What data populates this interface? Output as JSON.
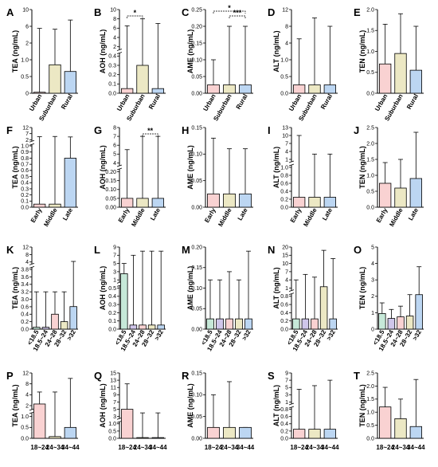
{
  "colors": {
    "pink": "#f9d2d2",
    "yellow": "#ece8c4",
    "blue": "#bcd6f2",
    "green": "#c6e8d8",
    "purple": "#cfc6ea",
    "orange": "#f7dcc0",
    "axis": "#000000"
  },
  "chart_data": [
    {
      "id": "A",
      "type": "bar",
      "ylabel": "TEA (ng/mL)",
      "categories": [
        "Urban",
        "Suburban",
        "Rural"
      ],
      "values": [
        0.03,
        0.85,
        0.65
      ],
      "errors": [
        5.5,
        5.3,
        7.5
      ],
      "yticks": [
        "0",
        "0.5",
        "1.0",
        "2",
        "6",
        "10"
      ],
      "colors": [
        "pink",
        "yellow",
        "blue"
      ],
      "rotated": true,
      "sig": []
    },
    {
      "id": "B",
      "type": "bar",
      "ylabel": "AOH (ng/mL)",
      "categories": [
        "Urban",
        "Suburban",
        "Rural"
      ],
      "values": [
        0.05,
        0.3,
        0.05
      ],
      "errors": [
        6.5,
        8,
        7
      ],
      "yticks": [
        "0.0",
        "0.1",
        "0.2",
        "0.3",
        "0.4",
        "2",
        "4",
        "6",
        "8",
        "10"
      ],
      "colors": [
        "pink",
        "yellow",
        "blue"
      ],
      "rotated": true,
      "sig": [
        {
          "label": "*",
          "from": 0,
          "to": 1,
          "level": 1
        }
      ]
    },
    {
      "id": "C",
      "type": "bar",
      "ylabel": "AME (ng/mL)",
      "categories": [
        "Urban",
        "Suburban",
        "Rural"
      ],
      "values": [
        0.025,
        0.025,
        0.025
      ],
      "errors": [
        0.1,
        0.2,
        0.2
      ],
      "yticks": [
        "0.00",
        "0.05",
        "0.10",
        "0.15",
        "0.20",
        "0.25"
      ],
      "colors": [
        "pink",
        "yellow",
        "blue"
      ],
      "rotated": true,
      "sig": [
        {
          "label": "*",
          "from": 0,
          "to": 2,
          "level": 2
        },
        {
          "label": "***",
          "from": 1,
          "to": 2,
          "level": 1
        }
      ]
    },
    {
      "id": "D",
      "type": "bar",
      "ylabel": "ALT (ng/mL)",
      "categories": [
        "Urban",
        "Suburban",
        "Rural"
      ],
      "values": [
        0.25,
        0.25,
        0.25
      ],
      "errors": [
        5,
        10,
        8
      ],
      "yticks": [
        "0.0",
        "0.5",
        "1.0",
        "4",
        "8",
        "12"
      ],
      "colors": [
        "pink",
        "yellow",
        "blue"
      ],
      "rotated": true,
      "sig": []
    },
    {
      "id": "E",
      "type": "bar",
      "ylabel": "TEN (ng/mL)",
      "categories": [
        "Urban",
        "Suburban",
        "Rural"
      ],
      "values": [
        0.7,
        0.95,
        0.55
      ],
      "errors": [
        1.65,
        1.9,
        1.6
      ],
      "yticks": [
        "0.0",
        "0.5",
        "1.0",
        "1.5",
        "2.0"
      ],
      "colors": [
        "pink",
        "yellow",
        "blue"
      ],
      "rotated": true,
      "sig": []
    },
    {
      "id": "F",
      "type": "bar",
      "ylabel": "TEA (ng/mL)",
      "categories": [
        "Early",
        "Middle",
        "Late"
      ],
      "values": [
        0.05,
        0.05,
        0.8
      ],
      "errors": [
        4.5,
        4.7,
        4.3
      ],
      "yticks": [
        "0.0",
        "0.1",
        "0.2",
        "0.3",
        "0.4",
        "0.5",
        "0.6",
        "0.7",
        "0.8",
        "0.9",
        "1.0",
        "2",
        "7",
        "12"
      ],
      "colors": [
        "pink",
        "yellow",
        "blue"
      ],
      "rotated": true,
      "sig": []
    },
    {
      "id": "G",
      "type": "bar",
      "ylabel": "AOH (ng/mL)",
      "categories": [
        "Early",
        "Middle",
        "Late"
      ],
      "values": [
        0.05,
        0.05,
        0.05
      ],
      "errors": [
        5.5,
        7,
        7
      ],
      "yticks": [
        "0.00",
        "0.05",
        "0.10",
        "0.15",
        "0.20",
        "4",
        "5",
        "6",
        "7",
        "8"
      ],
      "colors": [
        "pink",
        "yellow",
        "blue"
      ],
      "rotated": true,
      "sig": [
        {
          "label": "**",
          "from": 1,
          "to": 2,
          "level": 1
        }
      ]
    },
    {
      "id": "H",
      "type": "bar",
      "ylabel": "AME (ng/mL)",
      "categories": [
        "Early",
        "Middle",
        "Late"
      ],
      "values": [
        0.025,
        0.025,
        0.025
      ],
      "errors": [
        0.13,
        0.11,
        0.11
      ],
      "yticks": [
        "0.00",
        "0.05",
        "0.10",
        "0.15"
      ],
      "colors": [
        "pink",
        "yellow",
        "blue"
      ],
      "rotated": true,
      "sig": []
    },
    {
      "id": "I",
      "type": "bar",
      "ylabel": "ALT (ng/mL)",
      "categories": [
        "Early",
        "Middle",
        "Late"
      ],
      "values": [
        0.25,
        0.25,
        0.25
      ],
      "errors": [
        10,
        3,
        3
      ],
      "yticks": [
        "0.0",
        "0.2",
        "0.4",
        "0.6",
        "0.8",
        "1.0",
        "1",
        "4",
        "7",
        "10",
        "13"
      ],
      "colors": [
        "pink",
        "yellow",
        "blue"
      ],
      "rotated": true,
      "sig": []
    },
    {
      "id": "J",
      "type": "bar",
      "ylabel": "TEN (ng/mL)",
      "categories": [
        "Early",
        "Middle",
        "Late"
      ],
      "values": [
        0.75,
        0.6,
        0.9
      ],
      "errors": [
        1.4,
        1.5,
        2.35
      ],
      "yticks": [
        "0.0",
        "0.5",
        "1.0",
        "1.5",
        "2.0",
        "2.5"
      ],
      "colors": [
        "pink",
        "yellow",
        "blue"
      ],
      "rotated": true,
      "sig": []
    },
    {
      "id": "K",
      "type": "bar",
      "ylabel": "TEA (ng/mL)",
      "categories": [
        "<18.5",
        "18.5~24",
        "24~28",
        "28~32",
        ">32"
      ],
      "values": [
        0.05,
        0.05,
        0.4,
        0.2,
        0.65
      ],
      "errors": [
        3.2,
        3.2,
        3.2,
        3.2,
        4.3
      ],
      "yticks": [
        "0.0",
        "0.2",
        "0.4",
        "0.6",
        "3.0",
        "3.2",
        "3.4",
        "3.6",
        "3.8",
        "4",
        "8",
        "12"
      ],
      "colors": [
        "green",
        "purple",
        "pink",
        "yellow",
        "blue"
      ],
      "rotated": true,
      "sig": []
    },
    {
      "id": "L",
      "type": "bar",
      "ylabel": "AOH (ng/mL)",
      "categories": [
        "<18.5",
        "18.5~24",
        "24~28",
        "28~32",
        ">32"
      ],
      "values": [
        2.5,
        0.05,
        0.05,
        0.05,
        0.05
      ],
      "errors": [
        5,
        7,
        8,
        8,
        8
      ],
      "yticks": [
        "0.0",
        "0.1",
        "0.2",
        "0.3",
        "0.4",
        "0.5",
        "1",
        "3",
        "5",
        "7",
        "9"
      ],
      "colors": [
        "green",
        "purple",
        "pink",
        "yellow",
        "blue"
      ],
      "rotated": true,
      "sig": []
    },
    {
      "id": "M",
      "type": "bar",
      "ylabel": "AME (ng/mL)",
      "categories": [
        "<18.5",
        "18.5~24",
        "24~28",
        "28~32",
        ">32"
      ],
      "values": [
        0.025,
        0.025,
        0.025,
        0.025,
        0.025
      ],
      "errors": [
        0.12,
        0.12,
        0.14,
        0.12,
        0.19
      ],
      "yticks": [
        "0.00",
        "0.05",
        "0.10",
        "0.15",
        "0.20"
      ],
      "colors": [
        "green",
        "purple",
        "pink",
        "yellow",
        "blue"
      ],
      "rotated": true,
      "sig": []
    },
    {
      "id": "N",
      "type": "bar",
      "ylabel": "ALT (ng/mL)",
      "categories": [
        "<18.5",
        "18.5~24",
        "24~28",
        "28~32",
        ">32"
      ],
      "values": [
        0.25,
        0.25,
        0.25,
        1.5,
        0.25
      ],
      "errors": [
        4,
        6,
        5,
        18,
        13
      ],
      "yticks": [
        "0.0",
        "0.2",
        "0.4",
        "0.6",
        "0.8",
        "1",
        "4",
        "7",
        "10",
        "15",
        "20"
      ],
      "colors": [
        "green",
        "purple",
        "pink",
        "yellow",
        "blue"
      ],
      "rotated": true,
      "sig": []
    },
    {
      "id": "O",
      "type": "bar",
      "ylabel": "TEN (ng/mL)",
      "categories": [
        "<18.5",
        "18.5~24",
        "24~28",
        "28~32",
        ">32"
      ],
      "values": [
        0.95,
        0.65,
        0.75,
        0.8,
        2.1
      ],
      "errors": [
        1.6,
        1.2,
        1.4,
        2.1,
        3.8
      ],
      "yticks": [
        "0",
        "1",
        "2",
        "3",
        "4",
        "5"
      ],
      "colors": [
        "green",
        "purple",
        "pink",
        "yellow",
        "blue"
      ],
      "rotated": true,
      "sig": []
    },
    {
      "id": "P",
      "type": "bar",
      "ylabel": "TEA (ng/mL)",
      "categories": [
        "18~24",
        "24~34",
        "34~44"
      ],
      "values": [
        2.3,
        0.08,
        0.5
      ],
      "errors": [
        5,
        5,
        10
      ],
      "yticks": [
        "0.0",
        "0.5",
        "1.0",
        "2",
        "4",
        "8",
        "12"
      ],
      "colors": [
        "pink",
        "yellow",
        "blue"
      ],
      "rotated": false,
      "sig": []
    },
    {
      "id": "Q",
      "type": "bar",
      "ylabel": "AOH (ng/mL)",
      "categories": [
        "18~24",
        "24~34",
        "34~44"
      ],
      "values": [
        5,
        0.05,
        0.05
      ],
      "errors": [
        12,
        4,
        4
      ],
      "yticks": [
        "0.0",
        "0.5",
        "1.0",
        "3",
        "5",
        "7",
        "9",
        "11",
        "13",
        "15"
      ],
      "colors": [
        "pink",
        "yellow",
        "blue"
      ],
      "rotated": false,
      "sig": []
    },
    {
      "id": "R",
      "type": "bar",
      "ylabel": "AME (ng/mL)",
      "categories": [
        "18~24",
        "24~34",
        "34~44"
      ],
      "values": [
        0.025,
        0.025,
        0.025
      ],
      "errors": [
        0.1,
        0.13,
        0.025
      ],
      "yticks": [
        "0.00",
        "0.05",
        "0.10",
        "0.15"
      ],
      "colors": [
        "pink",
        "yellow",
        "blue"
      ],
      "rotated": false,
      "sig": []
    },
    {
      "id": "S",
      "type": "bar",
      "ylabel": "ALT (ng/mL)",
      "categories": [
        "18~24",
        "24~34",
        "34~44"
      ],
      "values": [
        0.25,
        0.25,
        0.25
      ],
      "errors": [
        4.5,
        5.5,
        7
      ],
      "yticks": [
        "0.0",
        "0.2",
        "0.4",
        "0.6",
        "0.8",
        "1",
        "3",
        "5",
        "7",
        "9"
      ],
      "colors": [
        "pink",
        "yellow",
        "blue"
      ],
      "rotated": false,
      "sig": []
    },
    {
      "id": "T",
      "type": "bar",
      "ylabel": "TEN (ng/mL)",
      "categories": [
        "18~24",
        "24~34",
        "34~44"
      ],
      "values": [
        1.2,
        0.75,
        0.45
      ],
      "errors": [
        1.95,
        1.5,
        2.25
      ],
      "yticks": [
        "0.0",
        "0.5",
        "1.0",
        "1.5",
        "2.0",
        "2.5"
      ],
      "colors": [
        "pink",
        "yellow",
        "blue"
      ],
      "rotated": false,
      "sig": []
    }
  ]
}
